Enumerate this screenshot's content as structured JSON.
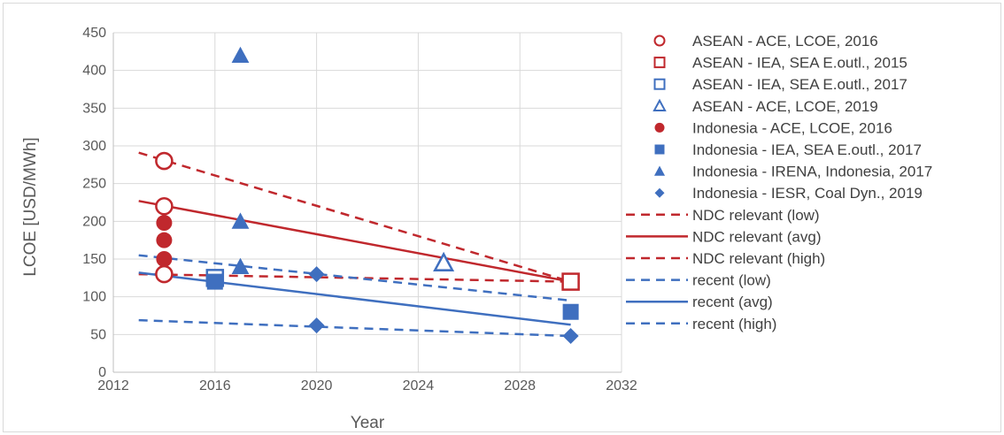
{
  "chart_data": {
    "type": "scatter",
    "title": "",
    "xlabel": "Year",
    "ylabel": "LCOE [USD/MWh]",
    "xlim": [
      2012,
      2032
    ],
    "ylim": [
      0,
      450
    ],
    "x_ticks": [
      "2012",
      "2016",
      "2020",
      "2024",
      "2028",
      "2032"
    ],
    "y_ticks": [
      "0",
      "50",
      "100",
      "150",
      "200",
      "250",
      "300",
      "350",
      "400",
      "450"
    ],
    "grid": "vertical and horizontal major gridlines",
    "legend_position": "right",
    "colors": {
      "red": "#c0282d",
      "blue": "#3f6fbf",
      "grid": "#d9d9d9",
      "axis": "#bfbfbf"
    },
    "series": [
      {
        "name": "ASEAN - ACE, LCOE, 2016",
        "kind": "marker",
        "marker": "circle-open",
        "color": "#c0282d",
        "points": [
          [
            2014,
            280
          ],
          [
            2014,
            220
          ],
          [
            2014,
            130
          ]
        ]
      },
      {
        "name": "ASEAN - IEA, SEA E.outl., 2015",
        "kind": "marker",
        "marker": "square-open",
        "color": "#c0282d",
        "points": [
          [
            2030,
            120
          ]
        ]
      },
      {
        "name": "ASEAN - IEA, SEA E.outl., 2017",
        "kind": "marker",
        "marker": "square-open",
        "color": "#3f6fbf",
        "points": [
          [
            2016,
            125
          ]
        ]
      },
      {
        "name": "ASEAN - ACE, LCOE, 2019",
        "kind": "marker",
        "marker": "triangle-open",
        "color": "#3f6fbf",
        "points": [
          [
            2025,
            145
          ]
        ]
      },
      {
        "name": "Indonesia - ACE, LCOE, 2016",
        "kind": "marker",
        "marker": "circle-filled",
        "color": "#c0282d",
        "points": [
          [
            2014,
            198
          ],
          [
            2014,
            175
          ],
          [
            2014,
            150
          ]
        ]
      },
      {
        "name": "Indonesia - IEA, SEA E.outl., 2017",
        "kind": "marker",
        "marker": "square-filled",
        "color": "#3f6fbf",
        "points": [
          [
            2016,
            120
          ],
          [
            2030,
            80
          ]
        ]
      },
      {
        "name": "Indonesia - IRENA, Indonesia, 2017",
        "kind": "marker",
        "marker": "triangle-filled",
        "color": "#3f6fbf",
        "points": [
          [
            2017,
            420
          ],
          [
            2017,
            200
          ],
          [
            2017,
            140
          ]
        ]
      },
      {
        "name": "Indonesia - IESR, Coal Dyn., 2019",
        "kind": "marker",
        "marker": "diamond-filled",
        "color": "#3f6fbf",
        "points": [
          [
            2020,
            130
          ],
          [
            2020,
            62
          ],
          [
            2030,
            48
          ]
        ]
      },
      {
        "name": "NDC relevant (low)",
        "kind": "line",
        "dash": true,
        "color": "#c0282d",
        "points": [
          [
            2013,
            130
          ],
          [
            2030,
            120
          ]
        ]
      },
      {
        "name": "NDC relevant (avg)",
        "kind": "line",
        "dash": false,
        "color": "#c0282d",
        "points": [
          [
            2013,
            227
          ],
          [
            2030,
            120
          ]
        ]
      },
      {
        "name": "NDC relevant (high)",
        "kind": "line",
        "dash": true,
        "color": "#c0282d",
        "points": [
          [
            2013,
            291
          ],
          [
            2030,
            120
          ]
        ]
      },
      {
        "name": "recent (low)",
        "kind": "line",
        "dash": true,
        "color": "#3f6fbf",
        "points": [
          [
            2013,
            69
          ],
          [
            2030,
            48
          ]
        ]
      },
      {
        "name": "recent (avg)",
        "kind": "line",
        "dash": false,
        "color": "#3f6fbf",
        "points": [
          [
            2013,
            132
          ],
          [
            2030,
            63
          ]
        ]
      },
      {
        "name": "recent (high)",
        "kind": "line",
        "dash": true,
        "color": "#3f6fbf",
        "points": [
          [
            2013,
            155
          ],
          [
            2030,
            95
          ]
        ]
      }
    ]
  }
}
